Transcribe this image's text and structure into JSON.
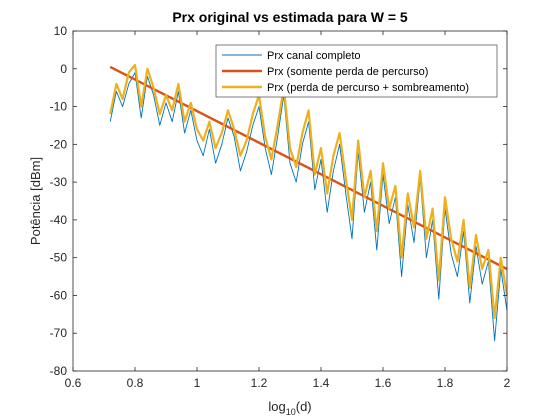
{
  "chart_data": {
    "type": "line",
    "title": "Prx original vs estimada para W = 5",
    "xlabel_base": "log",
    "xlabel_sub": "10",
    "xlabel_rest": "(d)",
    "ylabel": "Potência [dBm]",
    "xlim": [
      0.6,
      2.0
    ],
    "ylim": [
      -80,
      10
    ],
    "xticks": [
      0.6,
      0.8,
      1.0,
      1.2,
      1.4,
      1.6,
      1.8,
      2.0
    ],
    "xtick_labels": [
      "0.6",
      "0.8",
      "1",
      "1.2",
      "1.4",
      "1.6",
      "1.8",
      "2"
    ],
    "yticks": [
      10,
      0,
      -10,
      -20,
      -30,
      -40,
      -50,
      -60,
      -70,
      -80
    ],
    "ytick_labels": [
      "10",
      "0",
      "-10",
      "-20",
      "-30",
      "-40",
      "-50",
      "-60",
      "-70",
      "-80"
    ],
    "grid": false,
    "legend_position": "top-right",
    "series": [
      {
        "name": "Prx canal completo",
        "color": "#0072BD",
        "x": [
          0.72,
          0.74,
          0.76,
          0.78,
          0.8,
          0.82,
          0.84,
          0.86,
          0.88,
          0.9,
          0.92,
          0.94,
          0.96,
          0.98,
          1.0,
          1.02,
          1.04,
          1.06,
          1.08,
          1.1,
          1.12,
          1.14,
          1.16,
          1.18,
          1.2,
          1.22,
          1.24,
          1.26,
          1.28,
          1.3,
          1.32,
          1.34,
          1.36,
          1.38,
          1.4,
          1.42,
          1.44,
          1.46,
          1.48,
          1.5,
          1.52,
          1.54,
          1.56,
          1.58,
          1.6,
          1.62,
          1.64,
          1.66,
          1.68,
          1.7,
          1.72,
          1.74,
          1.76,
          1.78,
          1.8,
          1.82,
          1.84,
          1.86,
          1.88,
          1.9,
          1.92,
          1.94,
          1.96,
          1.98,
          2.0
        ],
        "y": [
          -14,
          -6,
          -10,
          -4,
          -1,
          -13,
          -2,
          -7,
          -15,
          -9,
          -14,
          -6,
          -17,
          -11,
          -19,
          -23,
          -16,
          -25,
          -20,
          -13,
          -18,
          -27,
          -22,
          -15,
          -10,
          -21,
          -28,
          -18,
          -7,
          -25,
          -30,
          -20,
          -14,
          -32,
          -24,
          -38,
          -27,
          -20,
          -33,
          -45,
          -22,
          -38,
          -30,
          -48,
          -28,
          -41,
          -34,
          -55,
          -36,
          -46,
          -29,
          -50,
          -40,
          -61,
          -37,
          -49,
          -55,
          -43,
          -62,
          -47,
          -57,
          -51,
          -72,
          -53,
          -64
        ]
      },
      {
        "name": "Prx (somente perda de percurso)",
        "color": "#D95319",
        "x": [
          0.72,
          2.0
        ],
        "y": [
          0.5,
          -53
        ]
      },
      {
        "name": "Prx (perda de percurso + sombreamento)",
        "color": "#EDB120",
        "x": [
          0.72,
          0.74,
          0.76,
          0.78,
          0.8,
          0.82,
          0.84,
          0.86,
          0.88,
          0.9,
          0.92,
          0.94,
          0.96,
          0.98,
          1.0,
          1.02,
          1.04,
          1.06,
          1.08,
          1.1,
          1.12,
          1.14,
          1.16,
          1.18,
          1.2,
          1.22,
          1.24,
          1.26,
          1.28,
          1.3,
          1.32,
          1.34,
          1.36,
          1.38,
          1.4,
          1.42,
          1.44,
          1.46,
          1.48,
          1.5,
          1.52,
          1.54,
          1.56,
          1.58,
          1.6,
          1.62,
          1.64,
          1.66,
          1.68,
          1.7,
          1.72,
          1.74,
          1.76,
          1.78,
          1.8,
          1.82,
          1.84,
          1.86,
          1.88,
          1.9,
          1.92,
          1.94,
          1.96,
          1.98,
          2.0
        ],
        "y": [
          -12,
          -4,
          -8,
          -1,
          1,
          -10,
          0,
          -5,
          -12,
          -7,
          -11,
          -4,
          -14,
          -9,
          -16,
          -19,
          -14,
          -21,
          -17,
          -11,
          -16,
          -23,
          -19,
          -12,
          -7,
          -18,
          -24,
          -15,
          -5,
          -21,
          -26,
          -17,
          -11,
          -28,
          -21,
          -33,
          -23,
          -17,
          -29,
          -40,
          -19,
          -34,
          -27,
          -43,
          -25,
          -37,
          -31,
          -50,
          -33,
          -42,
          -27,
          -45,
          -37,
          -56,
          -34,
          -45,
          -51,
          -40,
          -58,
          -44,
          -53,
          -48,
          -66,
          -50,
          -60
        ]
      }
    ]
  }
}
